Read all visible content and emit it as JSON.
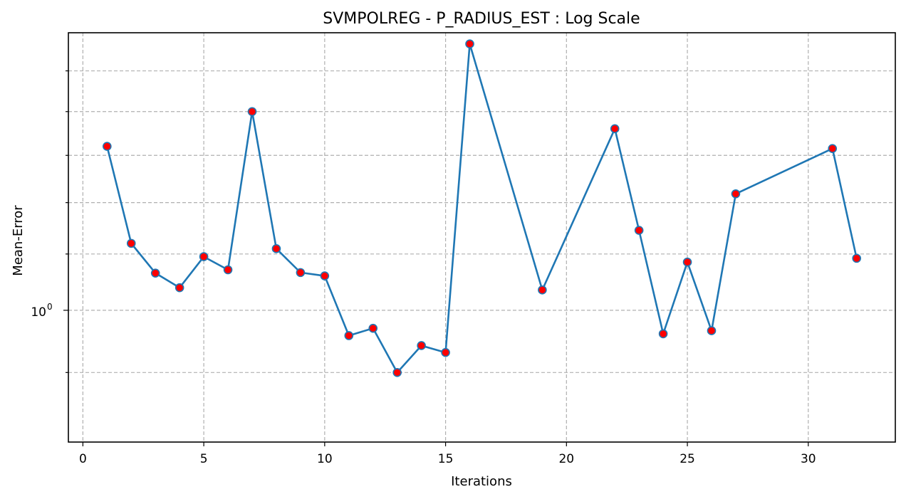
{
  "chart_data": {
    "type": "line",
    "title": "SVMPOLREG - P_RADIUS_EST : Log Scale",
    "xlabel": "Iterations",
    "ylabel": "Mean-Error",
    "yscale": "log",
    "xlim": [
      -0.6,
      33.6
    ],
    "ylim": [
      0.8,
      1.6
    ],
    "x_ticks": [
      0,
      5,
      10,
      15,
      20,
      25,
      30
    ],
    "y_major_ticks": [
      {
        "value": 1.0,
        "label": "10",
        "exponent": "0"
      }
    ],
    "y_minor_ticks": [
      0.9,
      1.1,
      1.2,
      1.3,
      1.4,
      1.5
    ],
    "grid": true,
    "line_color": "#1f77b4",
    "marker_color": "#ff0000",
    "series": [
      {
        "x": [
          1,
          2,
          3,
          4,
          5,
          6,
          7,
          8,
          9,
          10,
          11,
          12,
          13,
          14,
          15,
          16,
          19,
          22,
          23,
          24,
          25,
          26,
          27,
          31,
          32
        ],
        "y": [
          1.32,
          1.12,
          1.065,
          1.039,
          1.095,
          1.071,
          1.4,
          1.11,
          1.066,
          1.06,
          0.958,
          0.97,
          0.9,
          0.942,
          0.931,
          1.57,
          1.035,
          1.36,
          1.145,
          0.961,
          1.085,
          0.966,
          1.218,
          1.315,
          1.092
        ]
      }
    ]
  }
}
